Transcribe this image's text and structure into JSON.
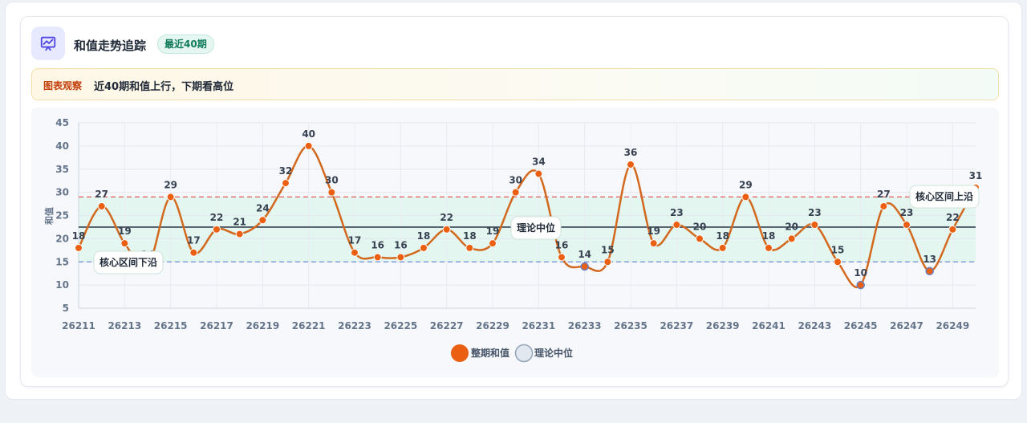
{
  "header": {
    "title": "和值走势追踪",
    "badge": "最近40期",
    "icon": "trend-chart-icon"
  },
  "insight": {
    "tag": "图表观察",
    "text": "近40期和值上行，下期看高位"
  },
  "legend": [
    {
      "label": "整期和值",
      "color": "#ea5f12"
    },
    {
      "label": "理论中位",
      "color": "#e2e8f0"
    }
  ],
  "colors": {
    "line": "#d2691e",
    "point": "#ea5f12",
    "point_low": "#6b7fbf",
    "median_line": "#4b5563",
    "upper_line": "#e05a5a",
    "lower_line": "#6b8fd6",
    "band": "#dff5ec"
  },
  "chart_data": {
    "type": "line",
    "ylabel": "和值",
    "ylim": [
      5,
      45
    ],
    "yticks": [
      5,
      10,
      15,
      20,
      25,
      30,
      35,
      40,
      45
    ],
    "x": [
      "26211",
      "26212",
      "26213",
      "26214",
      "26215",
      "26216",
      "26217",
      "26218",
      "26219",
      "26220",
      "26221",
      "26222",
      "26223",
      "26224",
      "26225",
      "26226",
      "26227",
      "26228",
      "26229",
      "26230",
      "26231",
      "26232",
      "26233",
      "26234",
      "26235",
      "26236",
      "26237",
      "26238",
      "26239",
      "26240",
      "26241",
      "26242",
      "26243",
      "26244",
      "26245",
      "26246",
      "26247",
      "26248",
      "26249",
      "26250"
    ],
    "xtick_labels": [
      "26211",
      "26213",
      "26215",
      "26217",
      "26219",
      "26221",
      "26223",
      "26225",
      "26227",
      "26229",
      "26231",
      "26233",
      "26235",
      "26237",
      "26239",
      "26241",
      "26243",
      "26245",
      "26247",
      "26249"
    ],
    "series": [
      {
        "name": "整期和值",
        "values": [
          18,
          27,
          19,
          14,
          29,
          17,
          22,
          21,
          24,
          32,
          40,
          30,
          17,
          16,
          16,
          18,
          22,
          18,
          19,
          30,
          34,
          16,
          14,
          15,
          36,
          19,
          23,
          20,
          18,
          29,
          18,
          20,
          23,
          15,
          10,
          27,
          23,
          13,
          22,
          31
        ]
      }
    ],
    "reference_lines": [
      {
        "label": "核心区间上沿",
        "value": 29
      },
      {
        "label": "理论中位",
        "value": 22.5
      },
      {
        "label": "核心区间下沿",
        "value": 15
      }
    ],
    "band": [
      15,
      29
    ],
    "grid": true,
    "legend_position": "bottom"
  }
}
